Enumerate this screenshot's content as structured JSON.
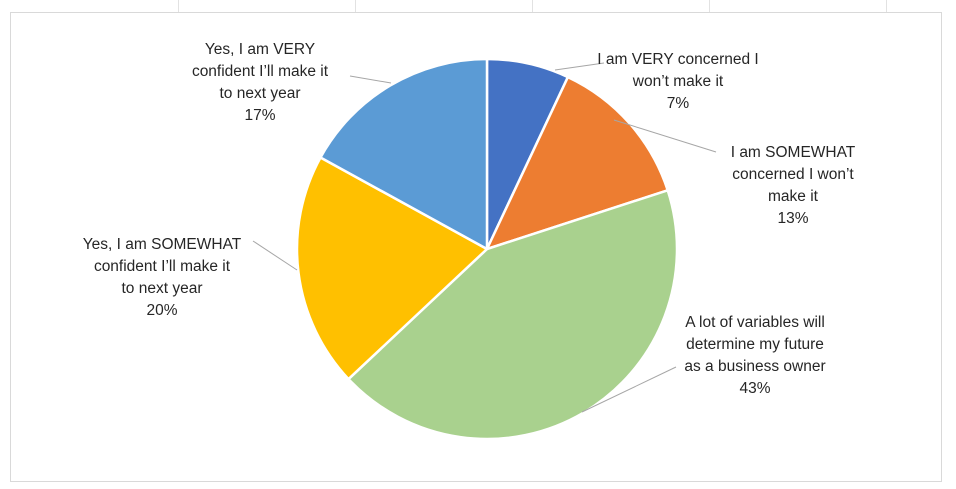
{
  "chart_data": {
    "type": "pie",
    "start_angle_deg": 0,
    "direction": "clockwise",
    "colors_note": "slice colors in order",
    "slices": [
      {
        "label_lines": [
          "I am VERY concerned I",
          "won’t make it"
        ],
        "percent_label": "7%",
        "value": 7,
        "color": "#4472C4"
      },
      {
        "label_lines": [
          "I am SOMEWHAT",
          "concerned I won’t",
          "make it"
        ],
        "percent_label": "13%",
        "value": 13,
        "color": "#ED7D31"
      },
      {
        "label_lines": [
          "A lot of variables will",
          "determine my future",
          "as a business owner"
        ],
        "percent_label": "43%",
        "value": 43,
        "color": "#A9D18E"
      },
      {
        "label_lines": [
          "Yes, I am SOMEWHAT",
          "confident I’ll make it",
          "to next year"
        ],
        "percent_label": "20%",
        "value": 20,
        "color": "#FFC000"
      },
      {
        "label_lines": [
          "Yes, I am VERY",
          "confident I’ll make it",
          "to next year"
        ],
        "percent_label": "17%",
        "value": 17,
        "color": "#5B9BD5"
      }
    ]
  }
}
